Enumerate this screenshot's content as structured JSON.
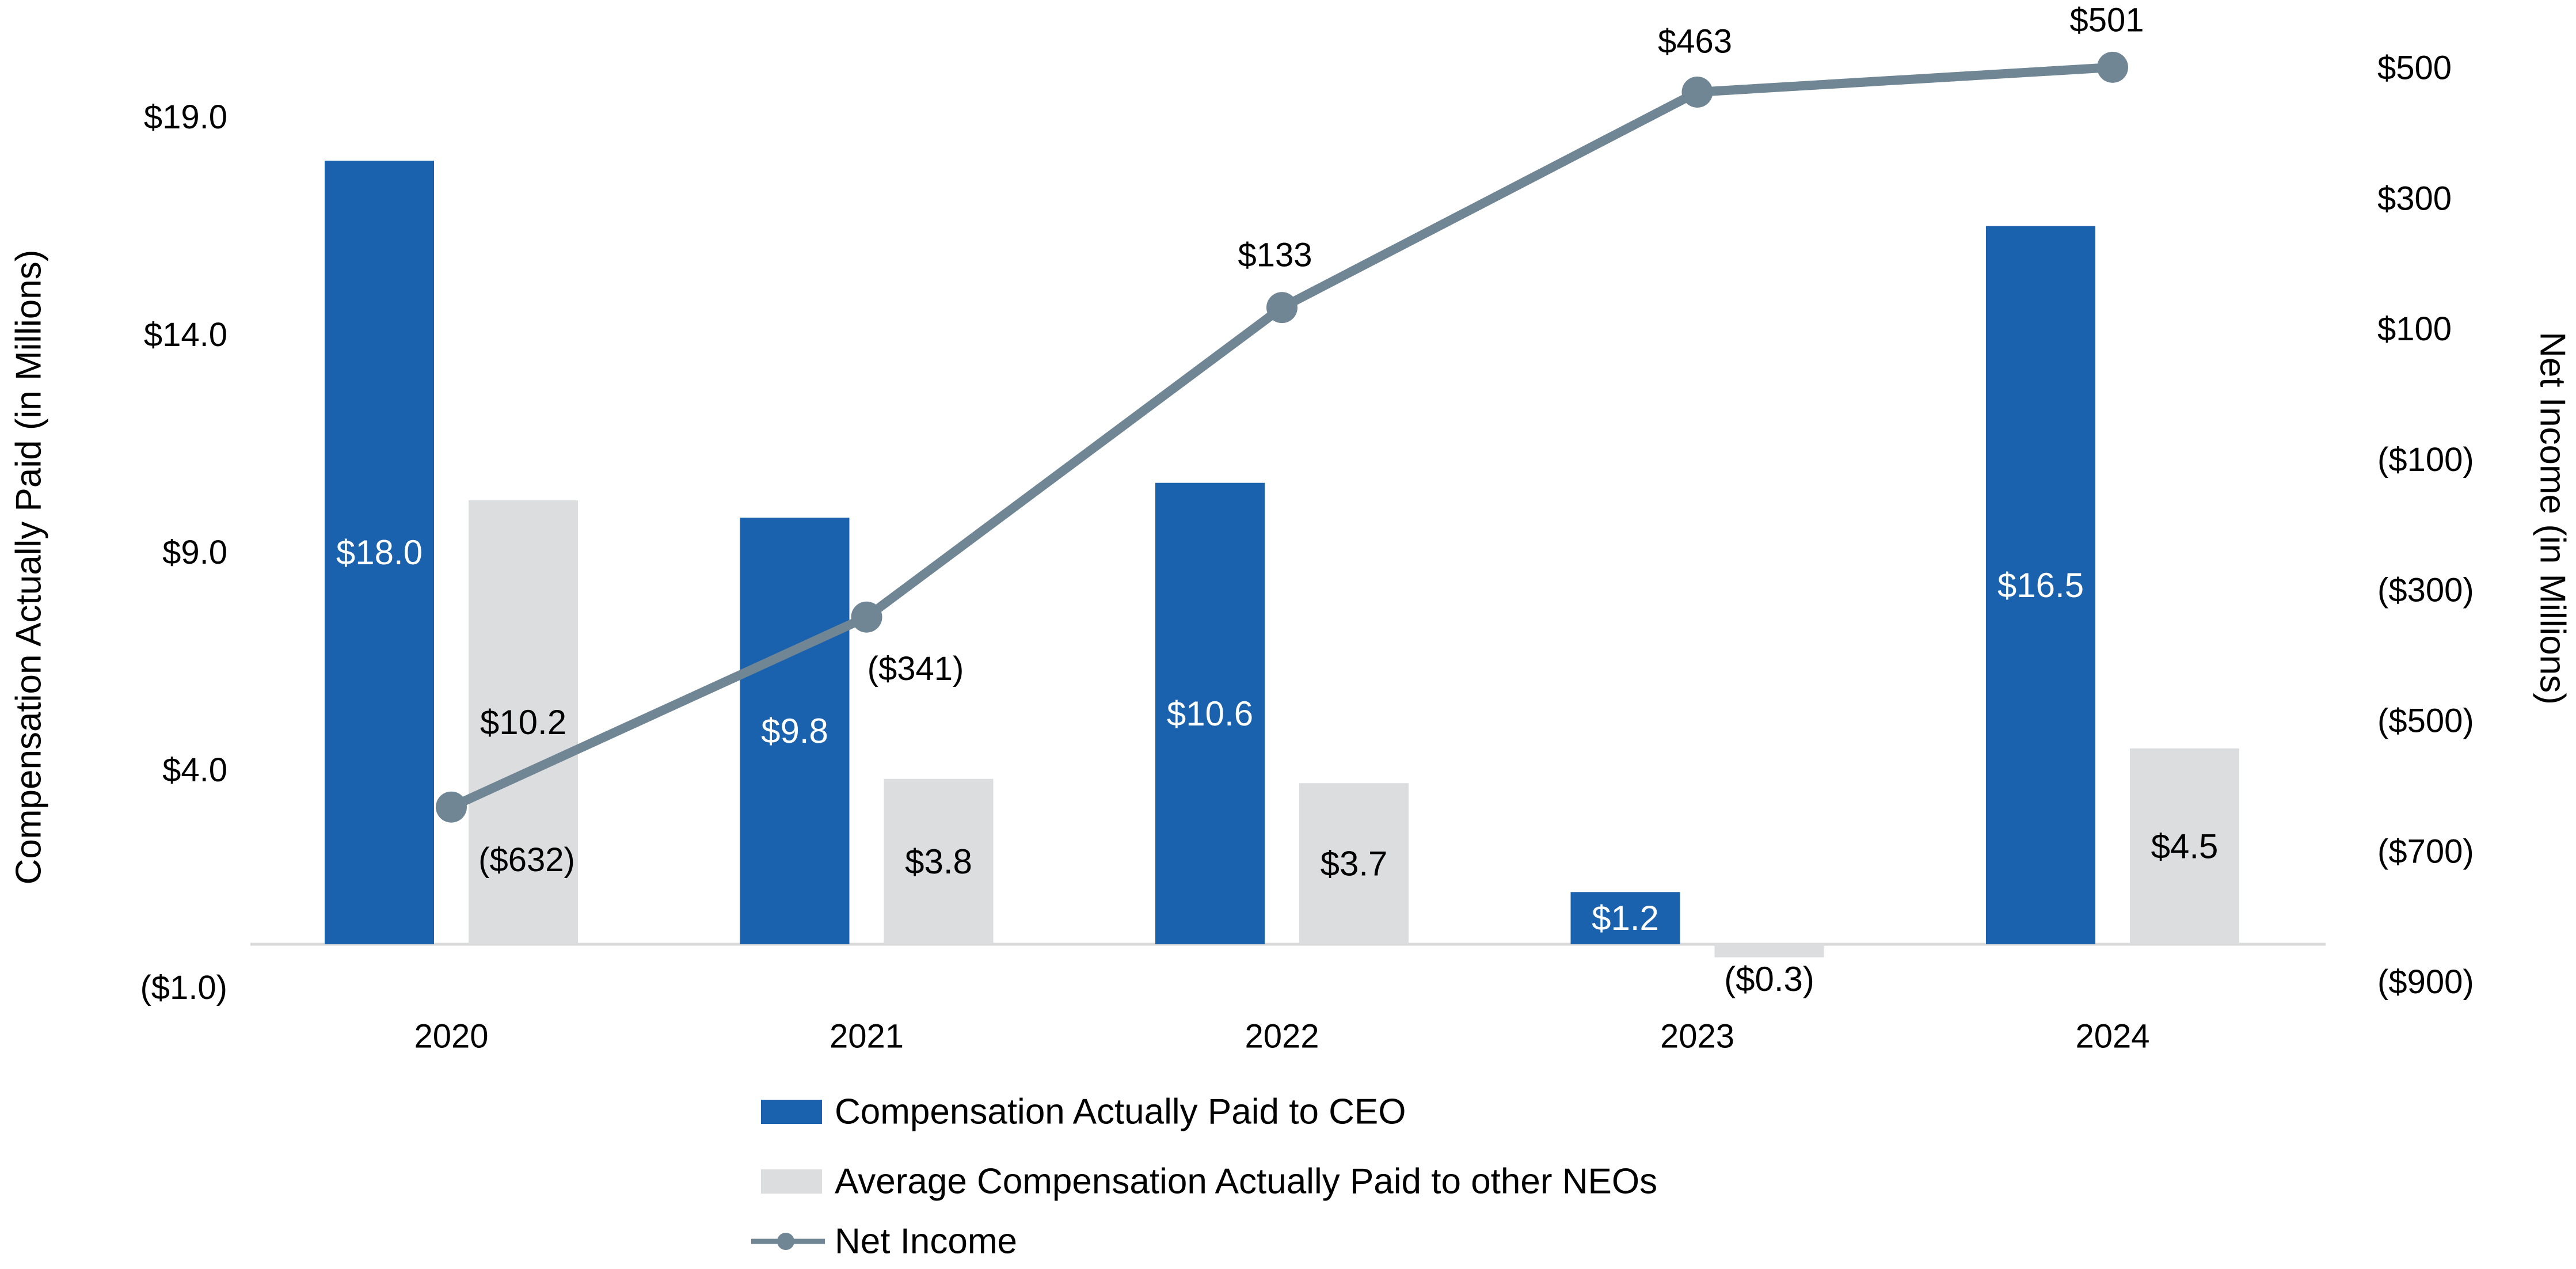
{
  "chart_data": {
    "type": "combo",
    "title": "",
    "categories": [
      "2020",
      "2021",
      "2022",
      "2023",
      "2024"
    ],
    "series": [
      {
        "name": "Compensation Actually Paid to CEO",
        "type": "bar",
        "axis": "left",
        "color": "#1A61AE",
        "values": [
          18.0,
          9.8,
          10.6,
          1.2,
          16.5
        ],
        "labels": [
          "$18.0",
          "$9.8",
          "$10.6",
          "$1.2",
          "$16.5"
        ],
        "label_color": "#FFFFFF"
      },
      {
        "name": "Average Compensation Actually Paid to other NEOs",
        "type": "bar",
        "axis": "left",
        "color": "#DCDDDE",
        "values": [
          10.2,
          3.8,
          3.7,
          -0.3,
          4.5
        ],
        "labels": [
          "$10.2",
          "$3.8",
          "$3.7",
          "($0.3)",
          "$4.5"
        ],
        "label_color": "#000000"
      },
      {
        "name": "Net Income",
        "type": "line",
        "axis": "right",
        "color": "#708694",
        "values": [
          -632,
          -341,
          133,
          463,
          501
        ],
        "labels": [
          "($632)",
          "($341)",
          "$133",
          "$463",
          "$501"
        ],
        "label_color": "#000000"
      }
    ],
    "left_axis": {
      "title": "Compensation Actually Paid (in Millions)",
      "tick_labels": [
        "$19.0",
        "$14.0",
        "$9.0",
        "$4.0",
        "($1.0)"
      ],
      "tick_values": [
        19,
        14,
        9,
        4,
        -1
      ],
      "range": [
        -1,
        19
      ]
    },
    "right_axis": {
      "title": "Net Income (in Millions)",
      "tick_labels": [
        "$500",
        "$300",
        "$100",
        "($100)",
        "($300)",
        "($500)",
        "($700)",
        "($900)"
      ],
      "tick_values": [
        500,
        300,
        100,
        -100,
        -300,
        -500,
        -700,
        -900
      ],
      "range": [
        -900,
        500
      ]
    },
    "grid": false,
    "legend_position": "bottom",
    "background": "#FFFFFF",
    "axis_line_color": "#D9D9D9"
  }
}
